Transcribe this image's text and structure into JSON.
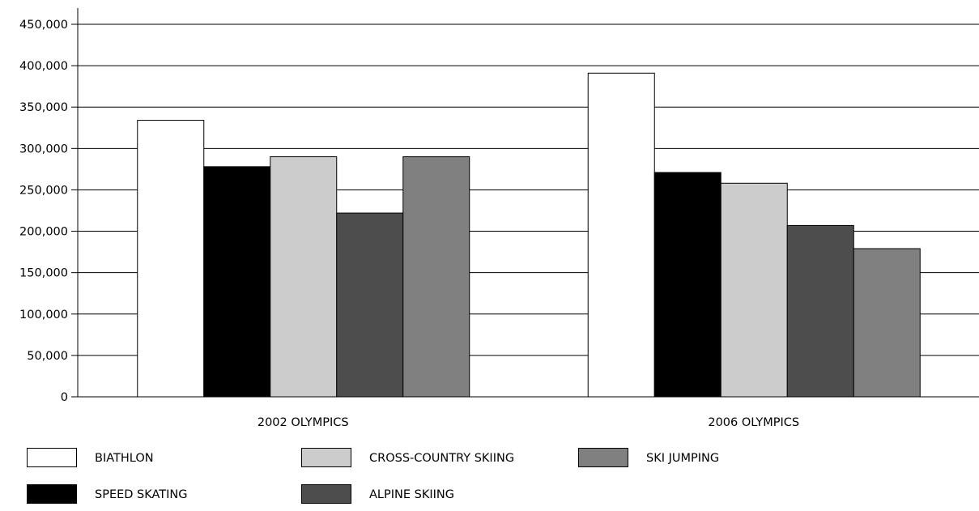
{
  "chart_data": {
    "type": "bar",
    "title": "",
    "xlabel": "",
    "ylabel": "",
    "ylim": [
      0,
      450000
    ],
    "y_ticks": [
      0,
      50000,
      100000,
      150000,
      200000,
      250000,
      300000,
      350000,
      400000,
      450000
    ],
    "y_tick_labels": [
      "0",
      "50,000",
      "100,000",
      "150,000",
      "200,000",
      "250,000",
      "300,000",
      "350,000",
      "400,000",
      "450,000"
    ],
    "grid": true,
    "legend_position": "bottom",
    "categories": [
      "2002 OLYMPICS",
      "2006 OLYMPICS"
    ],
    "series": [
      {
        "name": "BIATHLON",
        "color": "#ffffff",
        "values": [
          334000,
          391000
        ]
      },
      {
        "name": "SPEED SKATING",
        "color": "#000000",
        "values": [
          278000,
          271000
        ]
      },
      {
        "name": "CROSS-COUNTRY SKIING",
        "color": "#cccccc",
        "values": [
          290000,
          258000
        ]
      },
      {
        "name": "ALPINE SKIING",
        "color": "#4d4d4d",
        "values": [
          222000,
          207000
        ]
      },
      {
        "name": "SKI JUMPING",
        "color": "#808080",
        "values": [
          290000,
          179000
        ]
      }
    ],
    "legend_order": [
      "BIATHLON",
      "CROSS-COUNTRY SKIING",
      "SKI JUMPING",
      "SPEED SKATING",
      "ALPINE SKIING"
    ]
  }
}
